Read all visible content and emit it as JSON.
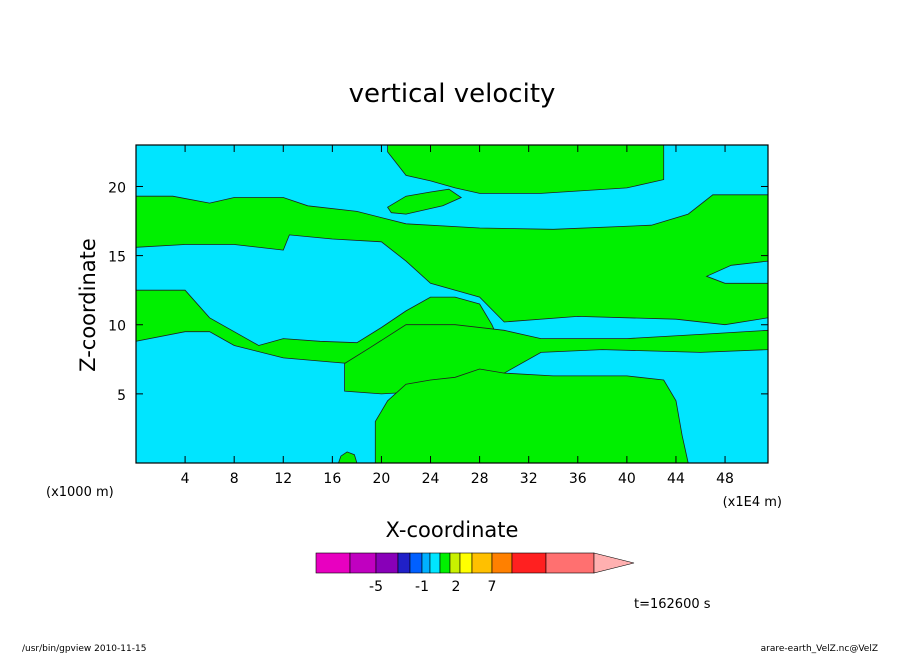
{
  "chart_data": {
    "type": "heatmap",
    "title": "vertical velocity",
    "xlabel": "X-coordinate",
    "ylabel": "Z-coordinate",
    "x_unit_left": "(x1000 m)",
    "x_unit_right": "(x1E4 m)",
    "xlim": [
      0,
      51.5
    ],
    "ylim": [
      0,
      23
    ],
    "x_ticks": [
      4,
      8,
      12,
      16,
      20,
      24,
      28,
      32,
      36,
      40,
      44,
      48
    ],
    "y_ticks": [
      5,
      10,
      15,
      20
    ],
    "grid": false,
    "background_color": "#00e5ff",
    "region_color": "#00f000",
    "regions": [
      {
        "name": "top-band",
        "points": [
          [
            20.5,
            23
          ],
          [
            43,
            23
          ],
          [
            43,
            20.5
          ],
          [
            40,
            19.9
          ],
          [
            33,
            19.5
          ],
          [
            28,
            19.5
          ],
          [
            26,
            19.9
          ],
          [
            24,
            20.4
          ],
          [
            22,
            20.8
          ],
          [
            21.3,
            21.6
          ],
          [
            20.5,
            22.5
          ]
        ]
      },
      {
        "name": "upper-left-band",
        "points": [
          [
            0,
            19.3
          ],
          [
            3,
            19.3
          ],
          [
            6,
            18.8
          ],
          [
            8,
            19.2
          ],
          [
            12,
            19.2
          ],
          [
            14,
            18.6
          ],
          [
            18,
            18.2
          ],
          [
            22,
            17.3
          ],
          [
            28,
            17.0
          ],
          [
            34,
            16.9
          ],
          [
            42,
            17.2
          ],
          [
            45,
            18.0
          ],
          [
            47,
            19.4
          ],
          [
            51.5,
            19.4
          ],
          [
            51.5,
            14.6
          ],
          [
            48.5,
            14.3
          ],
          [
            46.5,
            13.5
          ],
          [
            48,
            13.0
          ],
          [
            51.5,
            13.0
          ],
          [
            51.5,
            10.5
          ],
          [
            48,
            10.0
          ],
          [
            44,
            10.4
          ],
          [
            36,
            10.6
          ],
          [
            30,
            10.2
          ],
          [
            28,
            12.0
          ],
          [
            24,
            13.0
          ],
          [
            22,
            14.6
          ],
          [
            20,
            16.0
          ],
          [
            16,
            16.2
          ],
          [
            12.5,
            16.5
          ],
          [
            12,
            15.4
          ],
          [
            8,
            15.8
          ],
          [
            4,
            15.8
          ],
          [
            0,
            15.6
          ]
        ]
      },
      {
        "name": "mid-left-band",
        "points": [
          [
            0,
            12.5
          ],
          [
            4,
            12.5
          ],
          [
            6,
            10.5
          ],
          [
            8,
            9.5
          ],
          [
            10,
            8.5
          ],
          [
            12,
            9.0
          ],
          [
            15,
            8.8
          ],
          [
            18,
            8.7
          ],
          [
            20,
            9.8
          ],
          [
            22,
            11.0
          ],
          [
            24,
            12.0
          ],
          [
            26,
            12.0
          ],
          [
            28,
            11.5
          ],
          [
            29,
            10.0
          ],
          [
            30,
            8.0
          ],
          [
            28,
            7.5
          ],
          [
            24,
            7.3
          ],
          [
            20,
            7.0
          ],
          [
            16,
            7.3
          ],
          [
            12,
            7.6
          ],
          [
            8,
            8.5
          ],
          [
            6,
            9.5
          ],
          [
            4,
            9.5
          ],
          [
            0,
            8.8
          ]
        ]
      },
      {
        "name": "lower-mass",
        "points": [
          [
            17,
            7.2
          ],
          [
            19,
            8.3
          ],
          [
            22,
            10.0
          ],
          [
            26,
            10.0
          ],
          [
            30,
            9.6
          ],
          [
            33,
            9.0
          ],
          [
            40,
            9.0
          ],
          [
            46,
            9.3
          ],
          [
            51.5,
            9.6
          ],
          [
            51.5,
            8.2
          ],
          [
            46,
            8.0
          ],
          [
            38,
            8.2
          ],
          [
            33,
            8.0
          ],
          [
            30,
            6.5
          ],
          [
            28,
            5.5
          ],
          [
            26,
            6.0
          ],
          [
            24,
            5.2
          ],
          [
            20,
            5.0
          ],
          [
            17,
            5.2
          ]
        ]
      },
      {
        "name": "bottom-mass",
        "points": [
          [
            19.5,
            0
          ],
          [
            45,
            0
          ],
          [
            44.5,
            2.0
          ],
          [
            44,
            4.5
          ],
          [
            43,
            6.0
          ],
          [
            40,
            6.3
          ],
          [
            34,
            6.3
          ],
          [
            30,
            6.5
          ],
          [
            28,
            6.8
          ],
          [
            26,
            6.2
          ],
          [
            24,
            6.0
          ],
          [
            22,
            5.7
          ],
          [
            20.5,
            4.5
          ],
          [
            19.5,
            3.0
          ]
        ]
      },
      {
        "name": "bottom-blob",
        "points": [
          [
            16.5,
            0
          ],
          [
            18,
            0
          ],
          [
            17.8,
            0.6
          ],
          [
            17.2,
            0.8
          ],
          [
            16.7,
            0.5
          ]
        ]
      },
      {
        "name": "upper-blob",
        "points": [
          [
            20.5,
            18.5
          ],
          [
            22,
            19.3
          ],
          [
            24,
            19.6
          ],
          [
            25.5,
            19.8
          ],
          [
            26.5,
            19.2
          ],
          [
            25,
            18.6
          ],
          [
            22,
            18.0
          ],
          [
            20.8,
            18.1
          ]
        ]
      }
    ],
    "colorbar": {
      "colors": [
        "#e800c0",
        "#c000c0",
        "#8800b8",
        "#2020c8",
        "#0060ff",
        "#00b0ff",
        "#00e5ff",
        "#00f000",
        "#c8f000",
        "#ffff00",
        "#ffc000",
        "#ff8000",
        "#ff2020",
        "#ff7070",
        "#ffb0b0"
      ],
      "labels": [
        {
          "text": "-5",
          "value": -5
        },
        {
          "text": "-1",
          "value": -1
        },
        {
          "text": "2",
          "value": 2
        },
        {
          "text": "7",
          "value": 7
        }
      ]
    },
    "time_label": "t=162600 s"
  },
  "footer": {
    "left": "/usr/bin/gpview  2010-11-15",
    "right": "arare-earth_VelZ.nc@VelZ"
  }
}
